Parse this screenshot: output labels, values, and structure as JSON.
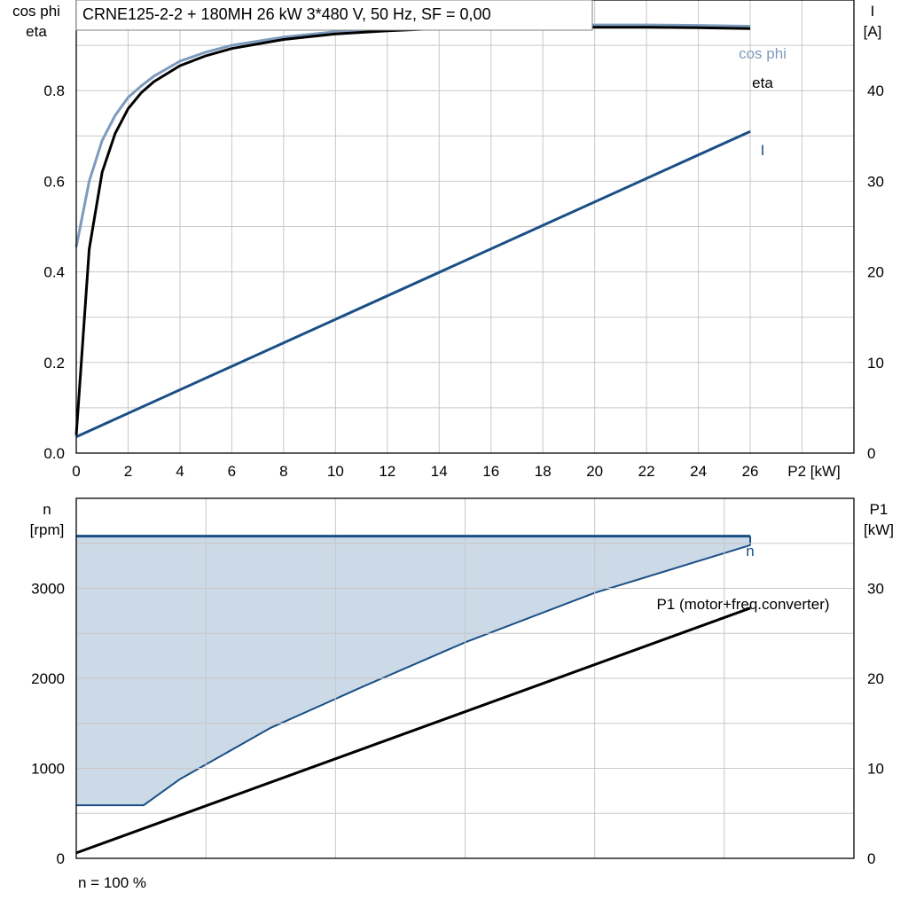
{
  "chart_data": [
    {
      "type": "line",
      "title": "CRNE125-2-2 + 180MH   26 kW   3*480 V, 50 Hz, SF = 0,00",
      "xlabel": "P2 [kW]",
      "ylabel_left": [
        "cos phi",
        "eta"
      ],
      "ylabel_right": [
        "I",
        "[A]"
      ],
      "xlim": [
        0,
        30
      ],
      "ylim_left": [
        0,
        1.0
      ],
      "ylim_right": [
        0,
        50
      ],
      "x_ticks": [
        "0",
        "2",
        "4",
        "6",
        "8",
        "10",
        "12",
        "14",
        "16",
        "18",
        "20",
        "22",
        "24",
        "26"
      ],
      "y_left_ticks": [
        "0.0",
        "0.2",
        "0.4",
        "0.6",
        "0.8"
      ],
      "y_right_ticks": [
        "0",
        "10",
        "20",
        "30",
        "40"
      ],
      "grid": true,
      "series": [
        {
          "name": "cos phi",
          "axis": "left",
          "color": "#7d9bbc",
          "x": [
            0,
            0.5,
            1,
            1.5,
            2,
            2.5,
            3,
            4,
            5,
            6,
            8,
            10,
            12,
            14,
            16,
            18,
            20,
            22,
            24,
            26
          ],
          "y": [
            0.455,
            0.6,
            0.69,
            0.745,
            0.785,
            0.81,
            0.832,
            0.865,
            0.885,
            0.9,
            0.918,
            0.93,
            0.937,
            0.941,
            0.944,
            0.945,
            0.945,
            0.945,
            0.944,
            0.942
          ]
        },
        {
          "name": "eta",
          "axis": "left",
          "color": "#000000",
          "x": [
            0,
            0.5,
            1,
            1.5,
            2,
            2.5,
            3,
            4,
            5,
            6,
            8,
            10,
            12,
            14,
            16,
            18,
            20,
            22,
            24,
            26
          ],
          "y": [
            0.04,
            0.45,
            0.62,
            0.705,
            0.76,
            0.795,
            0.82,
            0.855,
            0.877,
            0.893,
            0.913,
            0.925,
            0.932,
            0.937,
            0.939,
            0.94,
            0.94,
            0.94,
            0.939,
            0.937
          ]
        },
        {
          "name": "I",
          "axis": "right",
          "color": "#1a4f86",
          "x": [
            0,
            26
          ],
          "y": [
            1.8,
            35.5
          ]
        }
      ]
    },
    {
      "type": "line",
      "xlabel": "",
      "ylabel_left": [
        "n",
        "[rpm]"
      ],
      "ylabel_right": [
        "P1",
        "[kW]"
      ],
      "xlim": [
        0,
        30
      ],
      "ylim_left": [
        0,
        4000
      ],
      "ylim_right": [
        0,
        40
      ],
      "y_left_ticks": [
        "0",
        "1000",
        "2000",
        "3000"
      ],
      "y_right_ticks": [
        "0",
        "10",
        "20",
        "30"
      ],
      "grid": true,
      "footer": "n = 100 %",
      "series": [
        {
          "name": "n",
          "axis": "left",
          "color": "#1a4f86",
          "x": [
            0,
            26
          ],
          "y": [
            3580,
            3580
          ]
        },
        {
          "name": "P1 (motor+freq.converter)",
          "axis": "right",
          "color": "#000000",
          "x": [
            0,
            26
          ],
          "y": [
            0.6,
            27.8
          ]
        }
      ],
      "shaded_band": {
        "color": "#ccd9e6",
        "edge_color": "#1a4f86",
        "upper": 3580,
        "lower_x": [
          0,
          2.6,
          4,
          7.5,
          11,
          15,
          20,
          26
        ],
        "lower_y": [
          590,
          590,
          880,
          1450,
          1900,
          2400,
          2950,
          3480
        ]
      }
    }
  ]
}
